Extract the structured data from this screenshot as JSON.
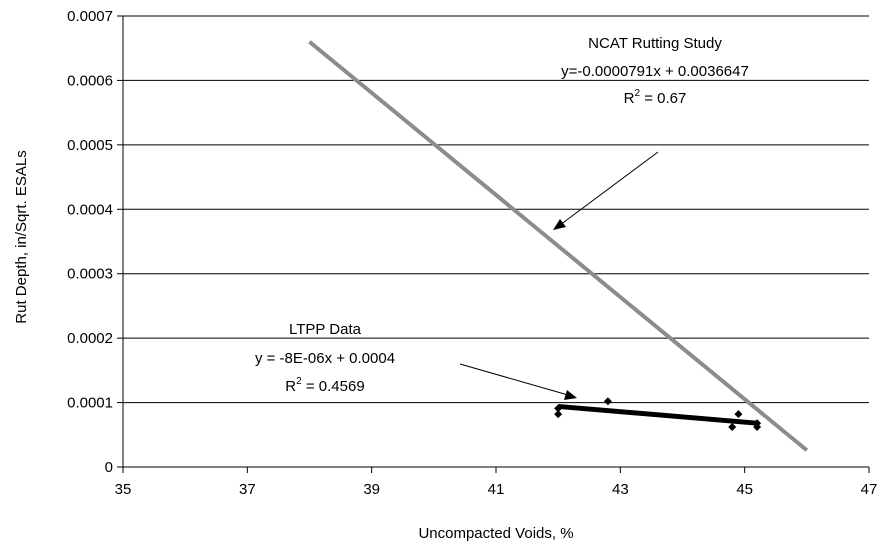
{
  "chart_data": {
    "type": "scatter",
    "title": "",
    "xlabel": "Uncompacted Voids, %",
    "ylabel": "Rut Depth, in/Sqrt. ESALs",
    "xlim": [
      35,
      47
    ],
    "ylim": [
      0,
      0.0007
    ],
    "x_ticks": [
      "35",
      "37",
      "39",
      "41",
      "43",
      "45",
      "47"
    ],
    "y_ticks": [
      "0",
      "0.0001",
      "0.0002",
      "0.0003",
      "0.0004",
      "0.0005",
      "0.0006",
      "0.0007"
    ],
    "grid": "horizontal",
    "series": [
      {
        "name": "LTPP Data",
        "type": "scatter",
        "color": "#000000",
        "marker": "diamond",
        "points": [
          {
            "x": 42.0,
            "y": 8.2e-05
          },
          {
            "x": 42.0,
            "y": 9.1e-05
          },
          {
            "x": 42.8,
            "y": 0.000102
          },
          {
            "x": 44.8,
            "y": 6.2e-05
          },
          {
            "x": 44.9,
            "y": 8.2e-05
          },
          {
            "x": 45.2,
            "y": 6.2e-05
          },
          {
            "x": 45.2,
            "y": 6.8e-05
          }
        ]
      }
    ],
    "trendlines": [
      {
        "id": "ncat",
        "color": "#8c8c8c",
        "x": [
          38.0,
          46.0
        ],
        "y": [
          0.00066,
          2.6e-05
        ]
      },
      {
        "id": "ltpp",
        "color": "#000000",
        "x": [
          42.0,
          45.2
        ],
        "y": [
          9.4e-05,
          6.8e-05
        ]
      }
    ],
    "annotations": {
      "ncat": {
        "title": "NCAT Rutting Study",
        "equation": "y=-0.0000791x + 0.0036647",
        "r2_prefix": "R",
        "r2_sup": "2",
        "r2_value": " = 0.67"
      },
      "ltpp": {
        "title": "LTPP Data",
        "equation": "y = -8E-06x + 0.0004",
        "r2_prefix": "R",
        "r2_sup": "2",
        "r2_value": " = 0.4569"
      }
    }
  }
}
